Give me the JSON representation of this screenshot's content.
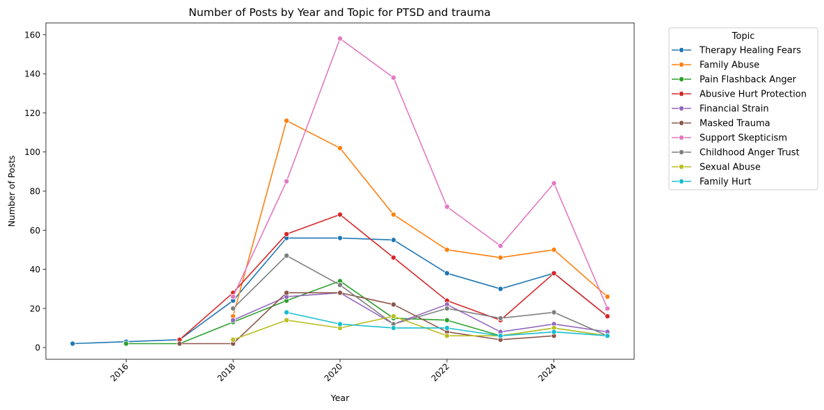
{
  "chart_data": {
    "type": "line",
    "title": "Number of Posts by Year and Topic for PTSD and trauma",
    "xlabel": "Year",
    "ylabel": "Number of Posts",
    "xlim": [
      2014.5,
      2025.5
    ],
    "ylim": [
      -6,
      166
    ],
    "xticks": [
      2016,
      2018,
      2020,
      2022,
      2024
    ],
    "yticks": [
      0,
      20,
      40,
      60,
      80,
      100,
      120,
      140,
      160
    ],
    "grid": false,
    "legend": {
      "title": "Topic",
      "placement": "outside-upper-right"
    },
    "series": [
      {
        "name": "Therapy Healing Fears",
        "color": "#1f77b4",
        "points": [
          [
            2015,
            2
          ],
          [
            2016,
            3
          ],
          [
            2017,
            4
          ],
          [
            2018,
            24
          ],
          [
            2019,
            56
          ],
          [
            2020,
            56
          ],
          [
            2021,
            55
          ],
          [
            2022,
            38
          ],
          [
            2023,
            30
          ],
          [
            2024,
            38
          ],
          [
            2025,
            16
          ]
        ]
      },
      {
        "name": "Family Abuse",
        "color": "#ff7f0e",
        "points": [
          [
            2018,
            16
          ],
          [
            2019,
            116
          ],
          [
            2020,
            102
          ],
          [
            2021,
            68
          ],
          [
            2022,
            50
          ],
          [
            2023,
            46
          ],
          [
            2024,
            50
          ],
          [
            2025,
            26
          ]
        ]
      },
      {
        "name": "Pain Flashback Anger",
        "color": "#2ca02c",
        "points": [
          [
            2016,
            2
          ],
          [
            2017,
            2
          ],
          [
            2018,
            13
          ],
          [
            2019,
            24
          ],
          [
            2020,
            34
          ],
          [
            2021,
            15
          ],
          [
            2022,
            14
          ],
          [
            2023,
            6
          ],
          [
            2024,
            10
          ],
          [
            2025,
            6
          ]
        ]
      },
      {
        "name": "Abusive Hurt Protection",
        "color": "#d62728",
        "points": [
          [
            2017,
            4
          ],
          [
            2018,
            28
          ],
          [
            2019,
            58
          ],
          [
            2020,
            68
          ],
          [
            2021,
            46
          ],
          [
            2022,
            24
          ],
          [
            2023,
            14
          ],
          [
            2024,
            38
          ],
          [
            2025,
            16
          ]
        ]
      },
      {
        "name": "Financial Strain",
        "color": "#9467bd",
        "points": [
          [
            2018,
            14
          ],
          [
            2019,
            26
          ],
          [
            2020,
            28
          ],
          [
            2021,
            12
          ],
          [
            2022,
            22
          ],
          [
            2023,
            8
          ],
          [
            2024,
            12
          ],
          [
            2025,
            8
          ]
        ]
      },
      {
        "name": "Masked Trauma",
        "color": "#8c564b",
        "points": [
          [
            2017,
            2
          ],
          [
            2018,
            2
          ],
          [
            2019,
            28
          ],
          [
            2020,
            28
          ],
          [
            2021,
            22
          ],
          [
            2022,
            8
          ],
          [
            2023,
            4
          ],
          [
            2024,
            6
          ]
        ]
      },
      {
        "name": "Support Skepticism",
        "color": "#e377c2",
        "points": [
          [
            2018,
            26
          ],
          [
            2019,
            85
          ],
          [
            2020,
            158
          ],
          [
            2021,
            138
          ],
          [
            2022,
            72
          ],
          [
            2023,
            52
          ],
          [
            2024,
            84
          ],
          [
            2025,
            20
          ]
        ]
      },
      {
        "name": "Childhood Anger Trust",
        "color": "#7f7f7f",
        "points": [
          [
            2018,
            20
          ],
          [
            2019,
            47
          ],
          [
            2020,
            32
          ],
          [
            2021,
            12
          ],
          [
            2022,
            20
          ],
          [
            2023,
            15
          ],
          [
            2024,
            18
          ],
          [
            2025,
            6
          ]
        ]
      },
      {
        "name": "Sexual Abuse",
        "color": "#bcbd22",
        "points": [
          [
            2018,
            4
          ],
          [
            2019,
            14
          ],
          [
            2020,
            10
          ],
          [
            2021,
            16
          ],
          [
            2022,
            6
          ],
          [
            2023,
            6
          ],
          [
            2024,
            10
          ],
          [
            2025,
            6
          ]
        ]
      },
      {
        "name": "Family Hurt",
        "color": "#17becf",
        "points": [
          [
            2019,
            18
          ],
          [
            2020,
            12
          ],
          [
            2021,
            10
          ],
          [
            2022,
            10
          ],
          [
            2023,
            6
          ],
          [
            2024,
            8
          ],
          [
            2025,
            6
          ]
        ]
      }
    ]
  }
}
